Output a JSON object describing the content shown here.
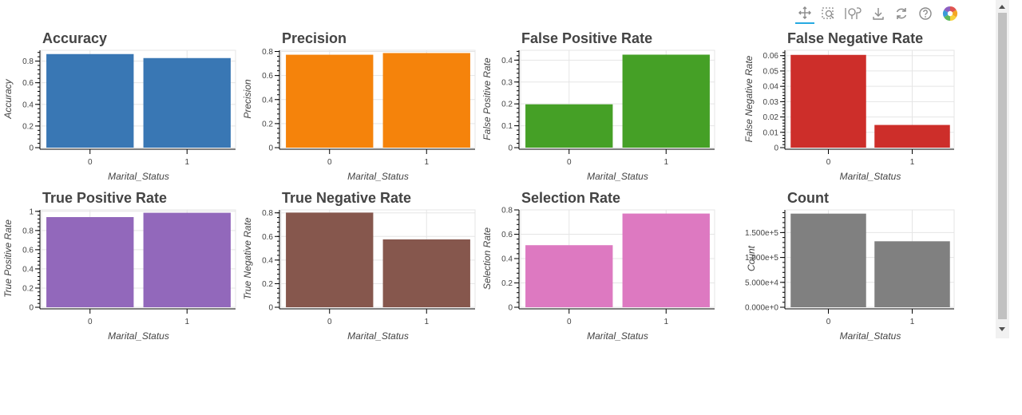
{
  "toolbar": {
    "tools": [
      {
        "name": "pan-tool-icon",
        "active": true
      },
      {
        "name": "box-zoom-tool-icon",
        "active": false
      },
      {
        "name": "wheel-zoom-tool-icon",
        "active": false
      },
      {
        "name": "save-tool-icon",
        "active": false
      },
      {
        "name": "reset-tool-icon",
        "active": false
      },
      {
        "name": "help-tool-icon",
        "active": false
      },
      {
        "name": "bokeh-logo-icon",
        "active": false
      }
    ]
  },
  "chart_data": [
    {
      "type": "bar",
      "title": "Accuracy",
      "xlabel": "Marital_Status",
      "ylabel": "Accuracy",
      "categories": [
        "0",
        "1"
      ],
      "values": [
        0.865,
        0.828
      ],
      "ylim": [
        0,
        0.9
      ],
      "yticks": [
        "0",
        "0.2",
        "0.4",
        "0.6",
        "0.8"
      ],
      "ytick_values": [
        0,
        0.2,
        0.4,
        0.6,
        0.8
      ],
      "color": "#3977b4"
    },
    {
      "type": "bar",
      "title": "Precision",
      "xlabel": "Marital_Status",
      "ylabel": "Precision",
      "categories": [
        "0",
        "1"
      ],
      "values": [
        0.773,
        0.787
      ],
      "ylim": [
        0,
        0.81
      ],
      "yticks": [
        "0",
        "0.2",
        "0.4",
        "0.6",
        "0.8"
      ],
      "ytick_values": [
        0,
        0.2,
        0.4,
        0.6,
        0.8
      ],
      "color": "#f5830b"
    },
    {
      "type": "bar",
      "title": "False Positive Rate",
      "xlabel": "Marital_Status",
      "ylabel": "False Positive Rate",
      "categories": [
        "0",
        "1"
      ],
      "values": [
        0.198,
        0.425
      ],
      "ylim": [
        0,
        0.445
      ],
      "yticks": [
        "0",
        "0.1",
        "0.2",
        "0.3",
        "0.4"
      ],
      "ytick_values": [
        0,
        0.1,
        0.2,
        0.3,
        0.4
      ],
      "color": "#45a026"
    },
    {
      "type": "bar",
      "title": "False Negative Rate",
      "xlabel": "Marital_Status",
      "ylabel": "False Negative Rate",
      "categories": [
        "0",
        "1"
      ],
      "values": [
        0.0605,
        0.0148
      ],
      "ylim": [
        0,
        0.0635
      ],
      "yticks": [
        "0",
        "0.01",
        "0.02",
        "0.03",
        "0.04",
        "0.05",
        "0.06"
      ],
      "ytick_values": [
        0,
        0.01,
        0.02,
        0.03,
        0.04,
        0.05,
        0.06
      ],
      "color": "#cd2e2a"
    },
    {
      "type": "bar",
      "title": "True Positive Rate",
      "xlabel": "Marital_Status",
      "ylabel": "True Positive Rate",
      "categories": [
        "0",
        "1"
      ],
      "values": [
        0.94,
        0.985
      ],
      "ylim": [
        0,
        1.015
      ],
      "yticks": [
        "0",
        "0.2",
        "0.4",
        "0.6",
        "0.8",
        "1"
      ],
      "ytick_values": [
        0,
        0.2,
        0.4,
        0.6,
        0.8,
        1.0
      ],
      "color": "#9268bb"
    },
    {
      "type": "bar",
      "title": "True Negative Rate",
      "xlabel": "Marital_Status",
      "ylabel": "True Negative Rate",
      "categories": [
        "0",
        "1"
      ],
      "values": [
        0.802,
        0.575
      ],
      "ylim": [
        0,
        0.825
      ],
      "yticks": [
        "0",
        "0.2",
        "0.4",
        "0.6",
        "0.8"
      ],
      "ytick_values": [
        0,
        0.2,
        0.4,
        0.6,
        0.8
      ],
      "color": "#86574d"
    },
    {
      "type": "bar",
      "title": "Selection Rate",
      "xlabel": "Marital_Status",
      "ylabel": "Selection Rate",
      "categories": [
        "0",
        "1"
      ],
      "values": [
        0.51,
        0.77
      ],
      "ylim": [
        0,
        0.8
      ],
      "yticks": [
        "0",
        "0.2",
        "0.4",
        "0.6",
        "0.8"
      ],
      "ytick_values": [
        0,
        0.2,
        0.4,
        0.6,
        0.8
      ],
      "color": "#dd79c1"
    },
    {
      "type": "bar",
      "title": "Count",
      "xlabel": "Marital_Status",
      "ylabel": "Count",
      "categories": [
        "0",
        "1"
      ],
      "values": [
        188000,
        132500
      ],
      "ylim": [
        0,
        195500
      ],
      "yticks": [
        "0.000e+0",
        "5.000e+4",
        "1.000e+5",
        "1.500e+5"
      ],
      "ytick_values": [
        0,
        50000,
        100000,
        150000
      ],
      "color": "#808080"
    }
  ]
}
